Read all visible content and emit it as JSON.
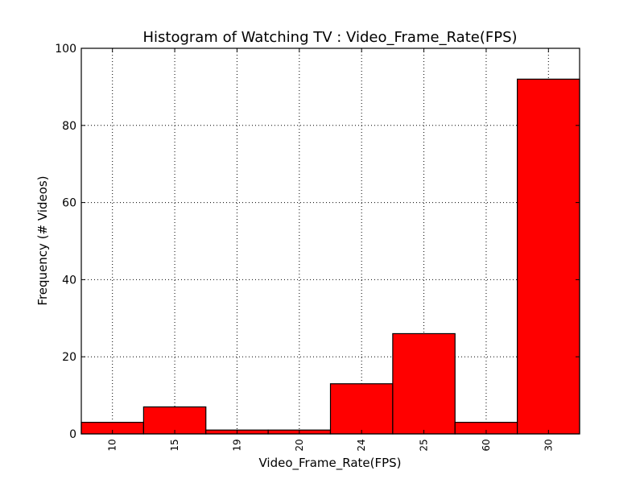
{
  "chart_data": {
    "type": "bar",
    "title": "Histogram of Watching TV : Video_Frame_Rate(FPS)",
    "xlabel": "Video_Frame_Rate(FPS)",
    "ylabel": "Frequency (# Videos)",
    "categories": [
      "10",
      "15",
      "19",
      "20",
      "24",
      "25",
      "60",
      "30"
    ],
    "values": [
      3,
      7,
      1,
      1,
      13,
      26,
      3,
      92
    ],
    "ylim": [
      0,
      100
    ],
    "yticks": [
      0,
      20,
      40,
      60,
      80,
      100
    ],
    "grid": true,
    "colors": {
      "bar": "#ff0000",
      "edge": "#000000",
      "grid": "#000000"
    }
  }
}
